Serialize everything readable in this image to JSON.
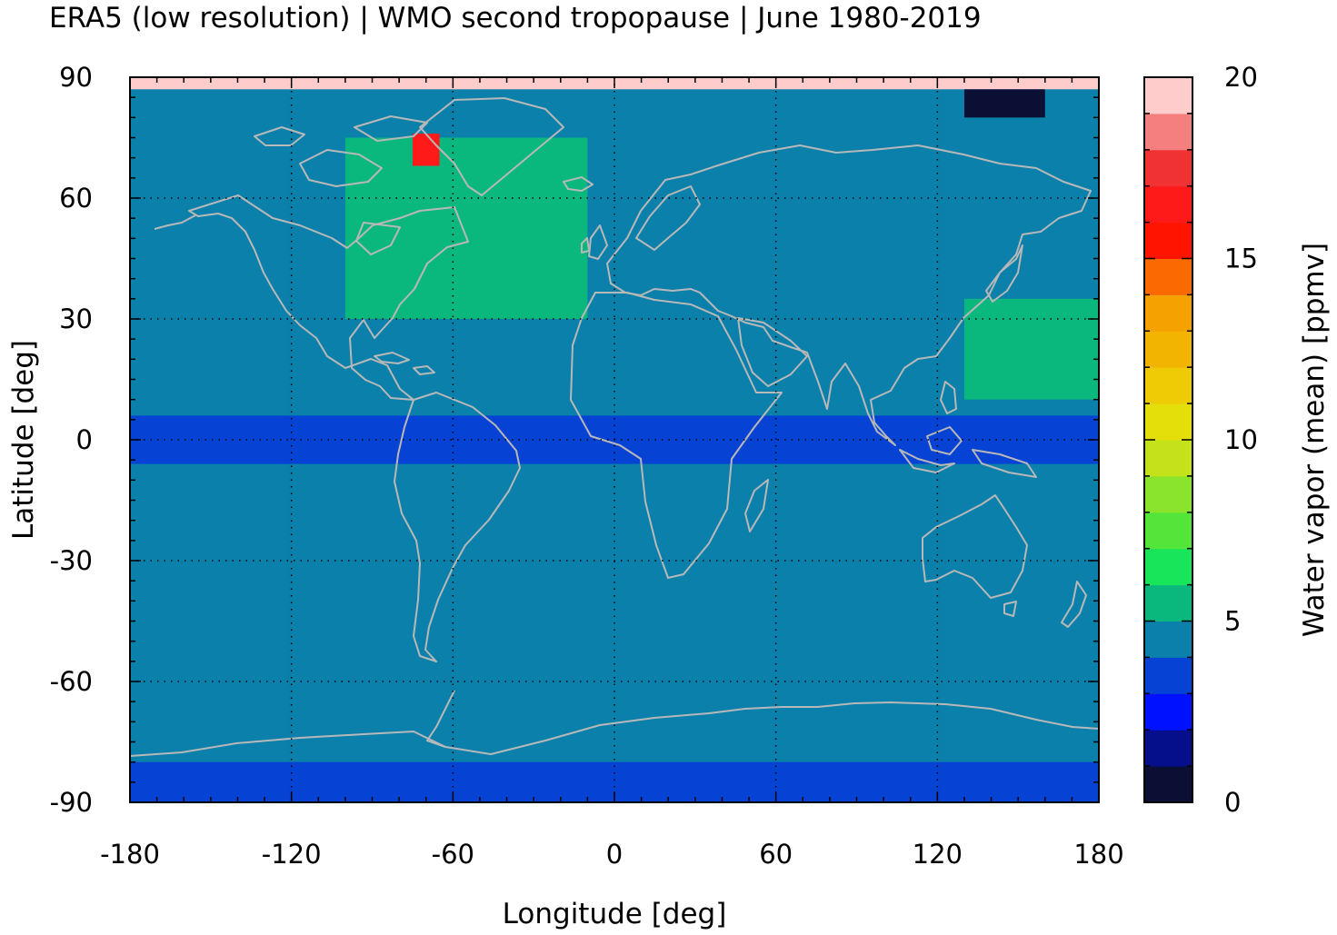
{
  "title": "ERA5 (low resolution) | WMO second tropopause | June 1980-2019",
  "chart_data": {
    "type": "heatmap",
    "xlabel": "Longitude [deg]",
    "ylabel": "Latitude [deg]",
    "xlim": [
      -180,
      180
    ],
    "ylim": [
      -90,
      90
    ],
    "xticks": [
      "-180",
      "-120",
      "-60",
      "0",
      "60",
      "120",
      "180"
    ],
    "yticks": [
      "90",
      "60",
      "30",
      "0",
      "-30",
      "-60",
      "-90"
    ],
    "grid": true,
    "colorbar": {
      "label": "Water vapor (mean) [ppmv]",
      "range": [
        0,
        20
      ],
      "ticks": [
        "20",
        "15",
        "10",
        "5",
        "0"
      ],
      "step": 1,
      "colors": [
        "#0b0f33",
        "#050f8c",
        "#0011ff",
        "#0642d4",
        "#0a80aa",
        "#0ab77d",
        "#19e55a",
        "#54e53b",
        "#89e42b",
        "#c4e11a",
        "#e4de0a",
        "#eecb04",
        "#f2b400",
        "#f5a100",
        "#fb6a00",
        "#ff1400",
        "#ff1a1a",
        "#f03232",
        "#f47f7f",
        "#ffcccc"
      ]
    },
    "field_summary": [
      {
        "region": "global background, 60S-60N",
        "lon": [
          -180,
          180
        ],
        "lat": [
          -60,
          60
        ],
        "value_ppmv": 4.5
      },
      {
        "region": "equatorial band",
        "lon": [
          -180,
          180
        ],
        "lat": [
          -6,
          6
        ],
        "value_ppmv": 3.5
      },
      {
        "region": "Antarctic plateau",
        "lon": [
          -180,
          180
        ],
        "lat": [
          -90,
          -80
        ],
        "value_ppmv": 3.5
      },
      {
        "region": "North Atlantic / Greenland plume",
        "lon": [
          -100,
          -10
        ],
        "lat": [
          30,
          75
        ],
        "value_ppmv": 5.5
      },
      {
        "region": "Greenland maximum",
        "lon": [
          -75,
          -65
        ],
        "lat": [
          68,
          76
        ],
        "value_ppmv": 16.5
      },
      {
        "region": "North Pole cap",
        "lon": [
          -180,
          180
        ],
        "lat": [
          87,
          90
        ],
        "value_ppmv": 19.5
      },
      {
        "region": "Arctic minimum, East Siberia",
        "lon": [
          130,
          160
        ],
        "lat": [
          80,
          87
        ],
        "value_ppmv": 0.5
      },
      {
        "region": "West Pacific patch",
        "lon": [
          130,
          180
        ],
        "lat": [
          10,
          35
        ],
        "value_ppmv": 5.5
      }
    ]
  }
}
